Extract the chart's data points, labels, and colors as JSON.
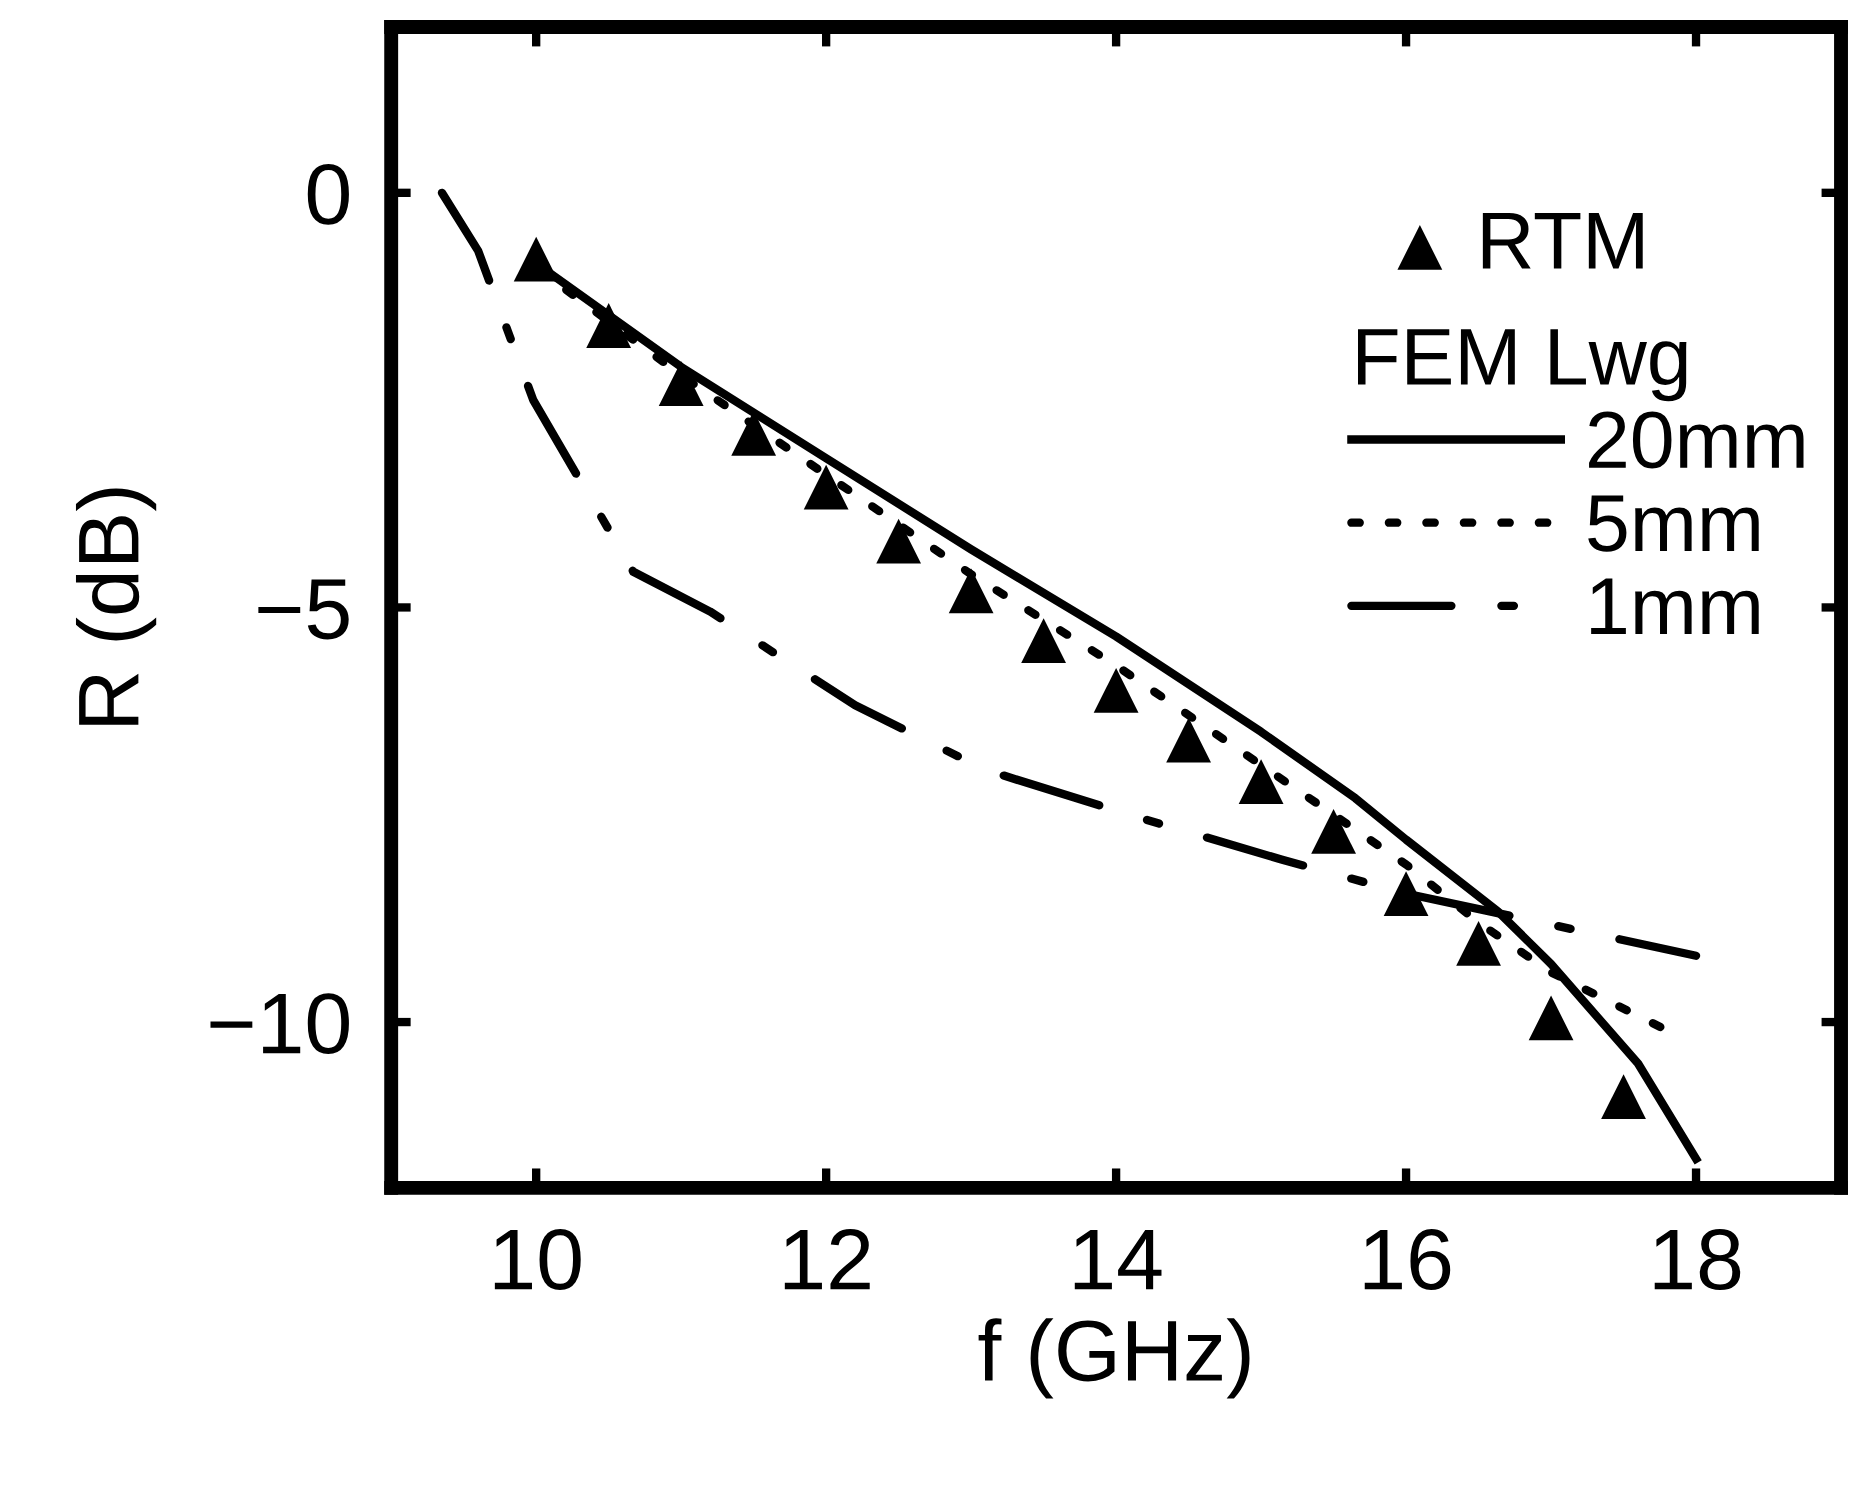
{
  "chart_data": {
    "type": "line",
    "xlabel": "f (GHz)",
    "ylabel": "R (dB)",
    "legend_title": "FEM Lwg",
    "legend": "top right",
    "grid": false,
    "xlim": [
      9,
      19
    ],
    "ylim": [
      -12,
      2
    ],
    "xticks": [
      10,
      12,
      14,
      16,
      18
    ],
    "yticks": [
      -10,
      -5,
      0
    ],
    "series": [
      {
        "name": "RTM",
        "type": "scatter",
        "marker": "triangle",
        "color": "#000000",
        "x": [
          10,
          10.5,
          11,
          11.5,
          12,
          12.5,
          13,
          13.5,
          14,
          14.5,
          15,
          15.5,
          16,
          16.5,
          17,
          17.5
        ],
        "values": [
          -0.8,
          -1.6,
          -2.3,
          -2.9,
          -3.55,
          -4.2,
          -4.8,
          -5.4,
          -6.0,
          -6.6,
          -7.1,
          -7.7,
          -8.45,
          -9.05,
          -9.95,
          -10.9
        ]
      },
      {
        "name": "20mm",
        "line_style": "solid",
        "color": "#000000",
        "x": [
          10,
          11,
          12,
          13,
          14,
          15,
          15.65,
          16,
          16.63,
          17,
          17.6,
          18
        ],
        "values": [
          -0.85,
          -2.1,
          -3.2,
          -4.3,
          -5.35,
          -6.5,
          -7.3,
          -7.8,
          -8.66,
          -9.3,
          -10.5,
          -11.65
        ]
      },
      {
        "name": "5mm",
        "line_style": "dotted",
        "color": "#000000",
        "x": [
          10,
          11,
          12,
          13,
          14,
          15,
          16,
          16.5,
          17,
          17.8
        ],
        "values": [
          -0.9,
          -2.2,
          -3.4,
          -4.6,
          -5.7,
          -6.9,
          -8.1,
          -8.8,
          -9.4,
          -10.1
        ]
      },
      {
        "name": "1mm",
        "line_style": "dashdot",
        "color": "#000000",
        "x": [
          9.35,
          9.6,
          9.98,
          10.67,
          11.2,
          12.2,
          13.1,
          14.15,
          15.14,
          16.0,
          17.2,
          18.0
        ],
        "values": [
          0.0,
          -0.7,
          -2.5,
          -4.57,
          -5.05,
          -6.18,
          -6.96,
          -7.53,
          -8.04,
          -8.45,
          -8.9,
          -9.2
        ]
      }
    ]
  }
}
